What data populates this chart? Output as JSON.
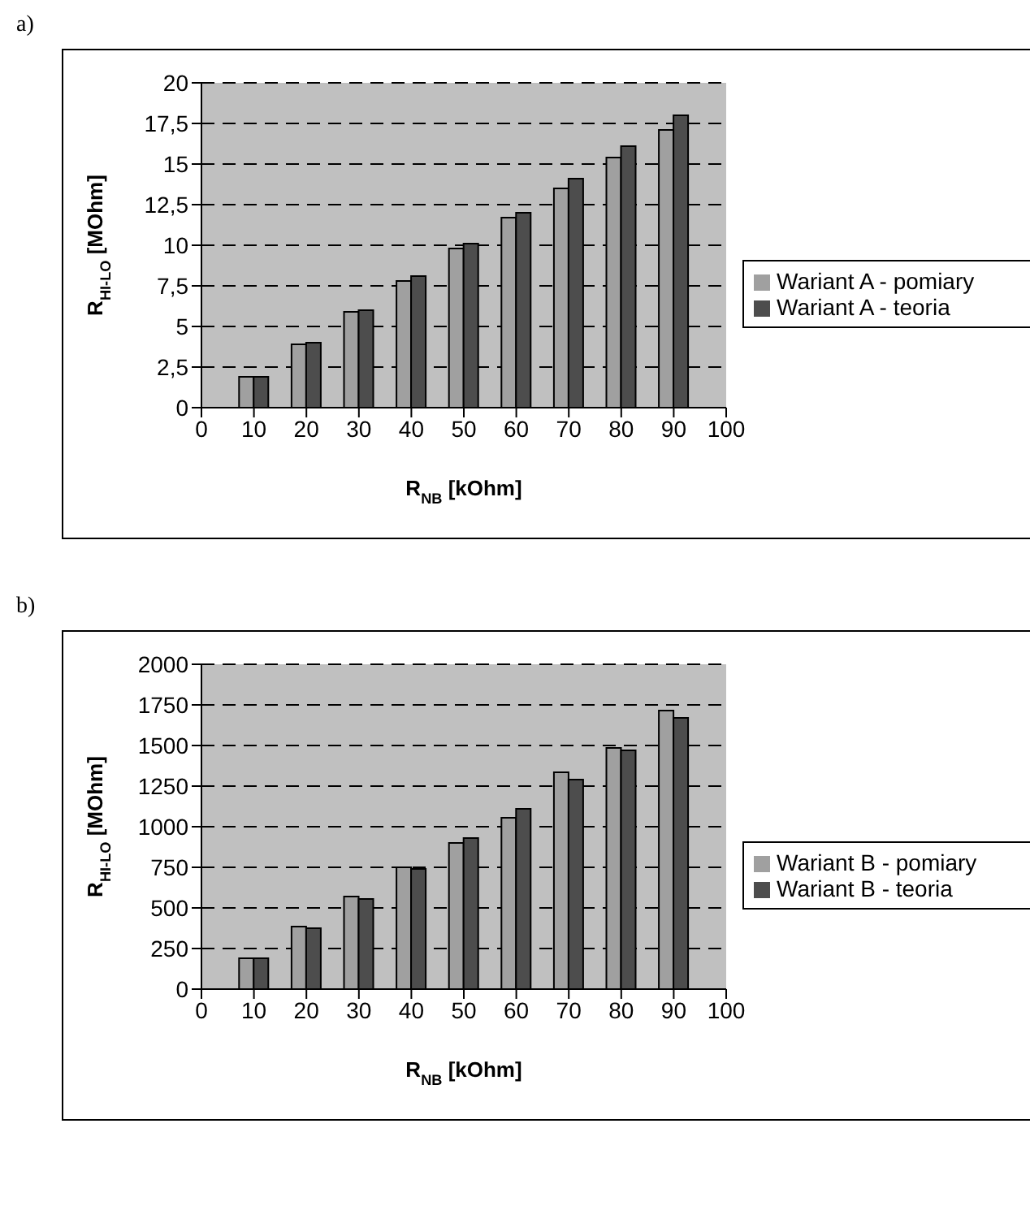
{
  "chart_data": [
    {
      "type": "bar",
      "title": "a)",
      "xlabel": "R$_{NB}$ [kOhm]",
      "ylabel": "R$_{HI-LO}$ [MOhm]",
      "x": [
        10,
        20,
        30,
        40,
        50,
        60,
        70,
        80,
        90
      ],
      "series": [
        {
          "name": "Wariant A - pomiary",
          "color": "#a0a0a0",
          "values": [
            1.9,
            3.9,
            5.9,
            7.8,
            9.8,
            11.7,
            13.5,
            15.4,
            17.1
          ]
        },
        {
          "name": "Wariant A - teoria",
          "color": "#4d4d4d",
          "values": [
            1.9,
            4.0,
            6.0,
            8.1,
            10.1,
            12.0,
            14.1,
            16.1,
            18.0
          ]
        }
      ],
      "xlim": [
        0,
        100
      ],
      "xticks": [
        0,
        10,
        20,
        30,
        40,
        50,
        60,
        70,
        80,
        90,
        100
      ],
      "ylim": [
        0,
        20
      ],
      "yticks": [
        0,
        "2,5",
        5,
        "7,5",
        10,
        "12,5",
        15,
        "17,5",
        20
      ],
      "grid": "y",
      "legend": "right"
    },
    {
      "type": "bar",
      "title": "b)",
      "xlabel": "R$_{NB}$ [kOhm]",
      "ylabel": "R$_{HI-LO}$ [MOhm]",
      "x": [
        10,
        20,
        30,
        40,
        50,
        60,
        70,
        80,
        90
      ],
      "series": [
        {
          "name": "Wariant B - pomiary",
          "color": "#a0a0a0",
          "values": [
            190,
            385,
            570,
            750,
            900,
            1055,
            1335,
            1485,
            1715
          ]
        },
        {
          "name": "Wariant B - teoria",
          "color": "#4d4d4d",
          "values": [
            190,
            375,
            555,
            740,
            930,
            1110,
            1290,
            1470,
            1670
          ]
        }
      ],
      "xlim": [
        0,
        100
      ],
      "xticks": [
        0,
        10,
        20,
        30,
        40,
        50,
        60,
        70,
        80,
        90,
        100
      ],
      "ylim": [
        0,
        2000
      ],
      "yticks": [
        0,
        250,
        500,
        750,
        1000,
        1250,
        1500,
        1750,
        2000
      ],
      "grid": "y",
      "legend": "right"
    }
  ]
}
